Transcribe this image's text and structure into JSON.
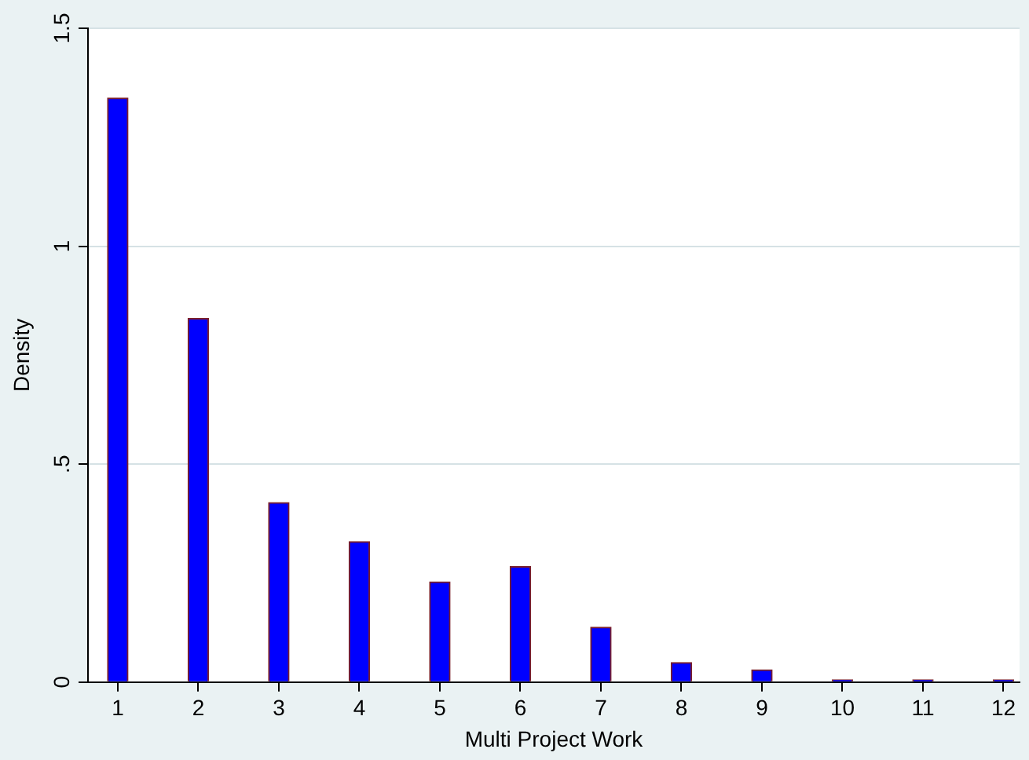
{
  "chart_data": {
    "type": "bar",
    "xlabel": "Multi Project Work",
    "ylabel": "Density",
    "x": [
      1,
      2,
      3,
      4,
      5,
      6,
      7,
      8,
      9,
      10,
      11,
      12
    ],
    "values": [
      1.34,
      0.834,
      0.412,
      0.322,
      0.23,
      0.265,
      0.126,
      0.045,
      0.028,
      0.005,
      0.005,
      0.005
    ],
    "color": "#0000ff",
    "xlim": [
      0.63,
      12.2
    ],
    "xticks": [
      1,
      2,
      3,
      4,
      5,
      6,
      7,
      8,
      9,
      10,
      11,
      12
    ],
    "ylim": [
      0,
      1.5
    ],
    "yticks": [
      {
        "value": 0,
        "label": "0"
      },
      {
        "value": 0.5,
        "label": ".5"
      },
      {
        "value": 1,
        "label": "1"
      },
      {
        "value": 1.5,
        "label": "1.5"
      }
    ],
    "grid": "y",
    "legend": false
  }
}
